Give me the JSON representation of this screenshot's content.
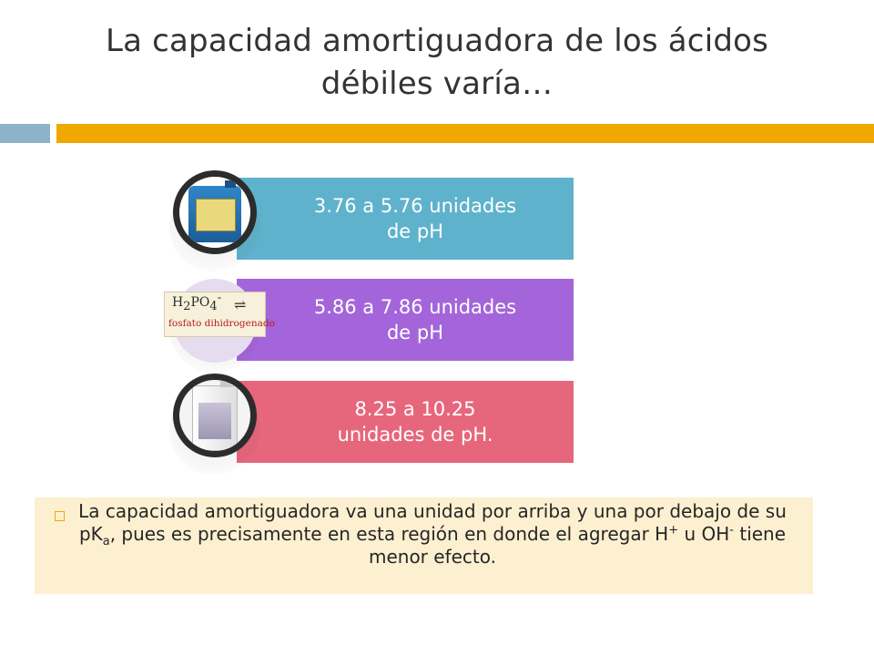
{
  "slide": {
    "title_line1": "La capacidad amortiguadora de los ácidos",
    "title_line2": "débiles varía…"
  },
  "items": [
    {
      "text_line1": "3.76 a 5.76 unidades",
      "text_line2": "de pH",
      "color": "#5fb2cb",
      "icon": "acetic-acid-jerrycan"
    },
    {
      "text_line1": "5.86 a 7.86 unidades",
      "text_line2": "de pH",
      "color": "#a365d9",
      "icon": "dihydrogen-phosphate-formula",
      "formula": {
        "main": "H",
        "sub1": "2",
        "main2": "PO",
        "sub2": "4",
        "sup": "-",
        "arrows": "⇌",
        "name": "fosfato dihidrogenado"
      }
    },
    {
      "text_line1": "8.25 a 10.25",
      "text_line2": "unidades de pH.",
      "color": "#e6677b",
      "icon": "ammonia-bottle"
    }
  ],
  "note": {
    "part1": "La capacidad amortiguadora va una unidad por arriba y una por debajo de su pK",
    "sub_a": "a",
    "part2": ", pues es precisamente en esta región en donde el agregar H",
    "sup_plus": "+",
    "part3": " u OH",
    "sup_minus": "-",
    "part4": " tiene menor efecto."
  },
  "colors": {
    "accent": "#f0a800",
    "secondary": "#8cb3c9",
    "note_bg": "#fcf0d0"
  }
}
